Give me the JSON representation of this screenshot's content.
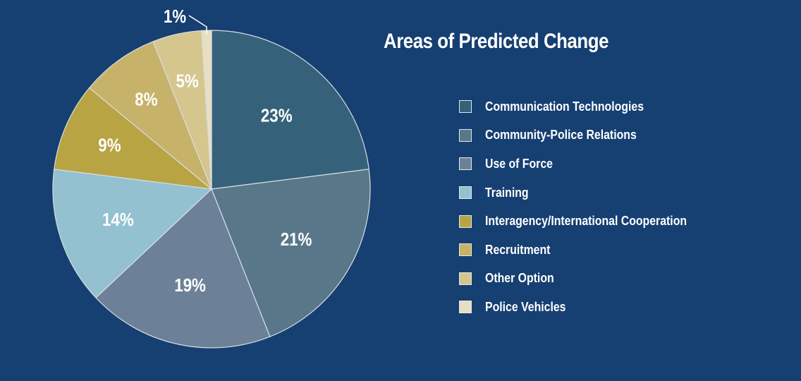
{
  "chart_data": {
    "type": "pie",
    "title": "Areas of Predicted Change",
    "start": "top",
    "direction": "clockwise",
    "slices": [
      {
        "label": "Communication Technologies",
        "value": 23,
        "display": "23%",
        "color": "#35627a"
      },
      {
        "label": "Community-Police Relations",
        "value": 21,
        "display": "21%",
        "color": "#587789"
      },
      {
        "label": "Use of Force",
        "value": 19,
        "display": "19%",
        "color": "#6c8198"
      },
      {
        "label": "Training",
        "value": 14,
        "display": "14%",
        "color": "#93c1d0"
      },
      {
        "label": "Interagency/International Cooperation",
        "value": 9,
        "display": "9%",
        "color": "#b9a444"
      },
      {
        "label": "Recruitment",
        "value": 8,
        "display": "8%",
        "color": "#c7b26a"
      },
      {
        "label": "Other Option",
        "value": 5,
        "display": "5%",
        "color": "#d5c68e"
      },
      {
        "label": "Police Vehicles",
        "value": 1,
        "display": "1%",
        "color": "#e8dfc2"
      }
    ],
    "legend_placement": "right"
  },
  "colors": {
    "background": "#163f72",
    "slice_border": "#d8dde4"
  }
}
